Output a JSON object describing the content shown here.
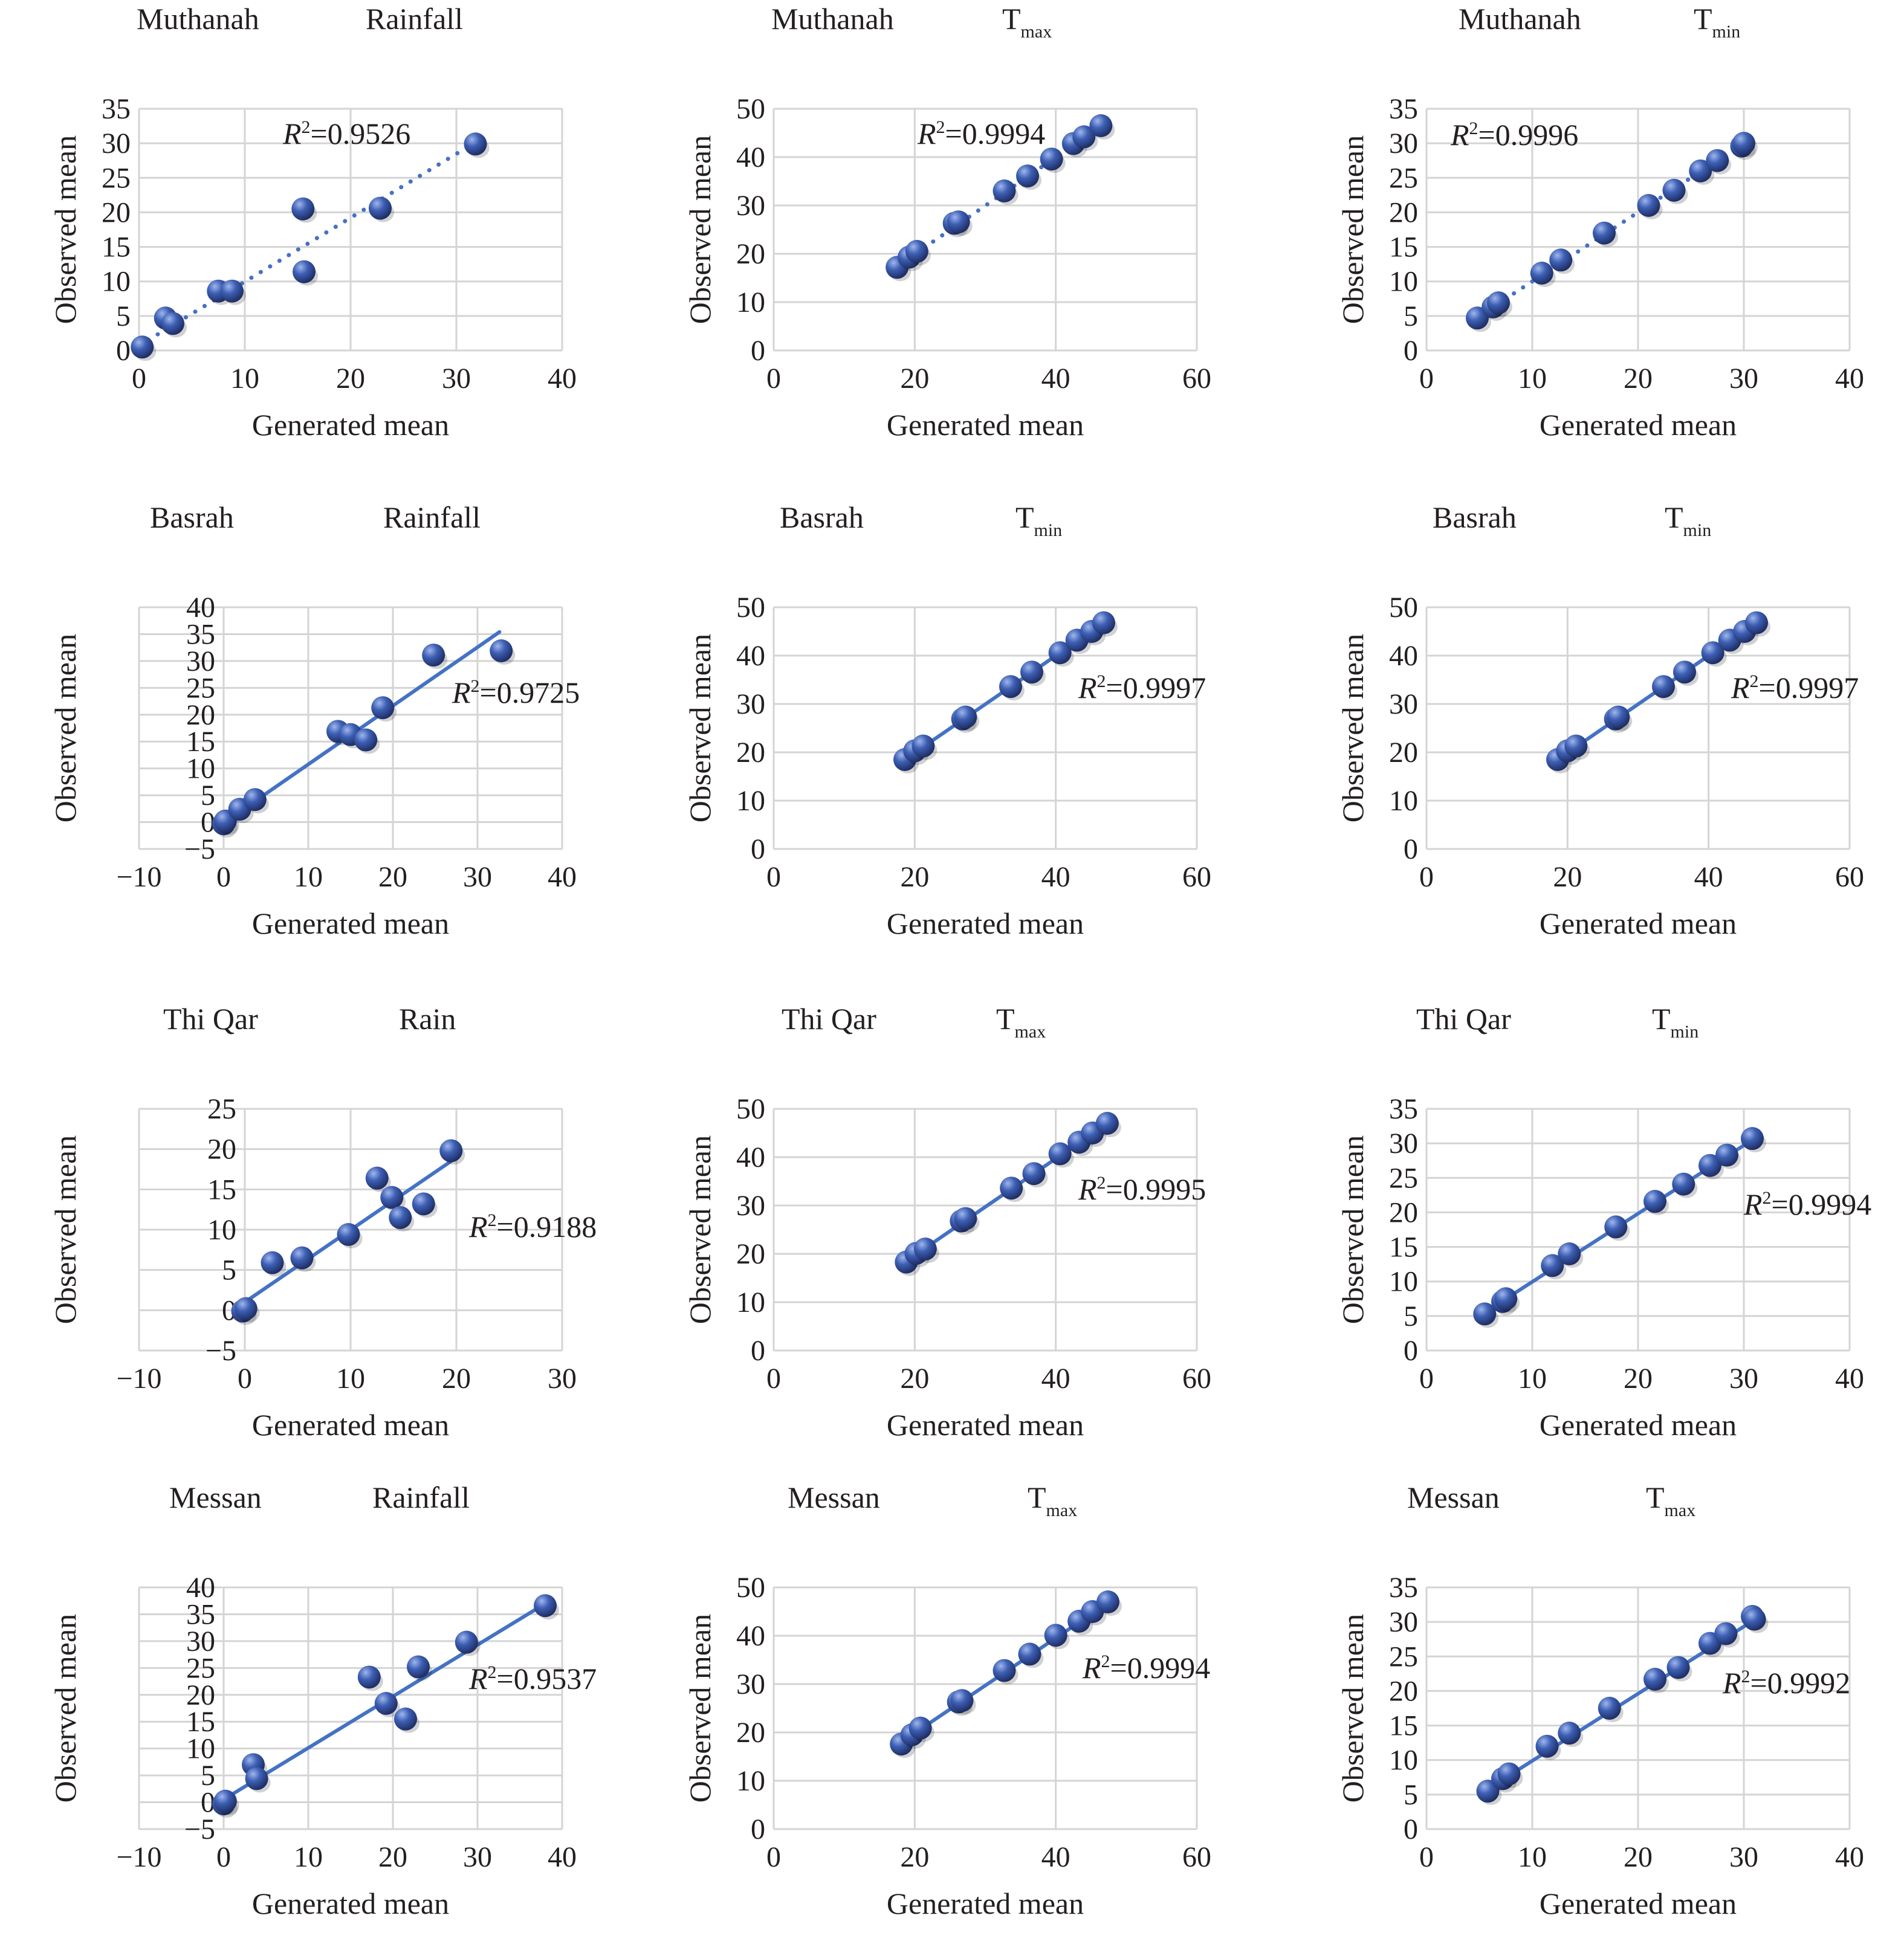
{
  "figure": {
    "grid_rows": 4,
    "grid_cols": 3
  },
  "colors": {
    "marker": "#3d5fb4",
    "marker_highlight": "#9fb6ec",
    "marker_shadow": "#1f2f66",
    "trendline": "#4472c4",
    "gridline": "#d4d4d4",
    "text": "#231f20"
  },
  "chart_data": [
    {
      "type": "scatter",
      "region": "Muthanah",
      "variable": "Rainfall",
      "variable_sub": "",
      "title": "Muthanah Rainfall",
      "xlabel": "Generated mean",
      "ylabel": "Observed mean",
      "xlim": [
        0,
        40
      ],
      "ylim": [
        0,
        35
      ],
      "xticks": [
        0,
        10,
        20,
        30,
        40
      ],
      "yticks": [
        0,
        5,
        10,
        15,
        20,
        25,
        30,
        35
      ],
      "grid": true,
      "trendline": "dotted",
      "r2_label": "=0.9526",
      "r2_position": "top-center",
      "points": [
        [
          0.3,
          0.5
        ],
        [
          2.5,
          4.7
        ],
        [
          3.2,
          3.9
        ],
        [
          7.5,
          8.6
        ],
        [
          8.8,
          8.6
        ],
        [
          15.5,
          20.5
        ],
        [
          15.6,
          11.4
        ],
        [
          22.8,
          20.6
        ],
        [
          31.8,
          29.9
        ]
      ],
      "fit": [
        [
          0,
          0.7
        ],
        [
          31,
          29.4
        ]
      ]
    },
    {
      "type": "scatter",
      "region": "Muthanah",
      "variable": "T",
      "variable_sub": "max",
      "title": "Muthanah Tmax",
      "xlabel": "Generated mean",
      "ylabel": "Observed mean",
      "xlim": [
        0,
        60
      ],
      "ylim": [
        0,
        50
      ],
      "xticks": [
        0,
        20,
        40,
        60
      ],
      "yticks": [
        0,
        10,
        20,
        30,
        40,
        50
      ],
      "grid": true,
      "trendline": "dotted",
      "r2_label": "=0.9994",
      "r2_position": "top-center",
      "points": [
        [
          17.5,
          17.2
        ],
        [
          19.2,
          19.3
        ],
        [
          20.3,
          20.5
        ],
        [
          25.6,
          26.3
        ],
        [
          26.2,
          26.6
        ],
        [
          32.7,
          33.0
        ],
        [
          36.0,
          36.1
        ],
        [
          39.4,
          39.6
        ],
        [
          42.5,
          42.8
        ],
        [
          44.0,
          44.2
        ],
        [
          46.4,
          46.5
        ]
      ],
      "fit": [
        [
          17.5,
          17.4
        ],
        [
          46.4,
          46.4
        ]
      ]
    },
    {
      "type": "scatter",
      "region": "Muthanah",
      "variable": "T",
      "variable_sub": "min",
      "title": "Muthanah Tmin",
      "xlabel": "Generated mean",
      "ylabel": "Observed mean",
      "xlim": [
        0,
        40
      ],
      "ylim": [
        0,
        35
      ],
      "xticks": [
        0,
        10,
        20,
        30,
        40
      ],
      "yticks": [
        0,
        5,
        10,
        15,
        20,
        25,
        30,
        35
      ],
      "grid": true,
      "trendline": "dotted",
      "r2_label": "=0.9996",
      "r2_position": "top-left",
      "points": [
        [
          4.8,
          4.7
        ],
        [
          6.3,
          6.3
        ],
        [
          6.8,
          6.9
        ],
        [
          10.9,
          11.2
        ],
        [
          12.7,
          13.1
        ],
        [
          16.8,
          17.0
        ],
        [
          21.0,
          21.0
        ],
        [
          23.4,
          23.2
        ],
        [
          25.9,
          26.0
        ],
        [
          27.5,
          27.5
        ],
        [
          29.8,
          29.6
        ],
        [
          30.0,
          30.0
        ]
      ],
      "fit": [
        [
          4.8,
          4.8
        ],
        [
          30.0,
          30.0
        ]
      ]
    },
    {
      "type": "scatter",
      "region": "Basrah",
      "variable": "Rainfall",
      "variable_sub": "",
      "title": "Basrah Rainfall",
      "xlabel": "Generated mean",
      "ylabel": "Observed mean",
      "xlim": [
        -10,
        40
      ],
      "ylim": [
        -5,
        40
      ],
      "xticks": [
        -10,
        0,
        10,
        20,
        30,
        40
      ],
      "yticks": [
        -5,
        0,
        5,
        10,
        15,
        20,
        25,
        30,
        35,
        40
      ],
      "grid": true,
      "trendline": "solid",
      "r2_label": "=0.9725",
      "r2_position": "right",
      "points": [
        [
          0,
          -0.3
        ],
        [
          0.2,
          0.2
        ],
        [
          1.9,
          2.4
        ],
        [
          3.7,
          4.2
        ],
        [
          13.5,
          16.9
        ],
        [
          15.0,
          16.3
        ],
        [
          16.8,
          15.3
        ],
        [
          18.8,
          21.3
        ],
        [
          24.8,
          31.1
        ],
        [
          32.8,
          31.9
        ]
      ],
      "fit": [
        [
          0.5,
          0.4
        ],
        [
          32.6,
          35.4
        ]
      ]
    },
    {
      "type": "scatter",
      "region": "Basrah",
      "variable": "T",
      "variable_sub": "min",
      "title": "Basrah Tmin",
      "xlabel": "Generated mean",
      "ylabel": "Observed mean",
      "xlim": [
        0,
        60
      ],
      "ylim": [
        0,
        50
      ],
      "xticks": [
        0,
        20,
        40,
        60
      ],
      "yticks": [
        0,
        10,
        20,
        30,
        40,
        50
      ],
      "grid": true,
      "trendline": "solid",
      "r2_label": "=0.9997",
      "r2_position": "right",
      "points": [
        [
          18.6,
          18.5
        ],
        [
          20.0,
          20.3
        ],
        [
          21.2,
          21.3
        ],
        [
          26.8,
          26.9
        ],
        [
          27.2,
          27.3
        ],
        [
          33.6,
          33.6
        ],
        [
          36.6,
          36.6
        ],
        [
          40.6,
          40.6
        ],
        [
          43.0,
          43.2
        ],
        [
          45.1,
          45.0
        ],
        [
          46.8,
          46.8
        ]
      ],
      "fit": [
        [
          18.6,
          18.5
        ],
        [
          46.8,
          46.8
        ]
      ]
    },
    {
      "type": "scatter",
      "region": "Basrah",
      "variable": "T",
      "variable_sub": "min",
      "title": "Basrah Tmin",
      "xlabel": "Generated mean",
      "ylabel": "Observed mean",
      "xlim": [
        0,
        60
      ],
      "ylim": [
        0,
        50
      ],
      "xticks": [
        0,
        20,
        40,
        60
      ],
      "yticks": [
        0,
        10,
        20,
        30,
        40,
        50
      ],
      "grid": true,
      "trendline": "solid",
      "r2_label": "=0.9997",
      "r2_position": "right",
      "points": [
        [
          18.6,
          18.5
        ],
        [
          20.0,
          20.3
        ],
        [
          21.2,
          21.3
        ],
        [
          26.8,
          26.9
        ],
        [
          27.2,
          27.3
        ],
        [
          33.6,
          33.6
        ],
        [
          36.6,
          36.6
        ],
        [
          40.6,
          40.6
        ],
        [
          43.0,
          43.2
        ],
        [
          45.1,
          45.0
        ],
        [
          46.8,
          46.8
        ]
      ],
      "fit": [
        [
          18.6,
          18.5
        ],
        [
          46.8,
          46.8
        ]
      ]
    },
    {
      "type": "scatter",
      "region": "Thi Qar",
      "variable": "Rain",
      "variable_sub": "",
      "title": "Thi Qar Rain",
      "xlabel": "Generated mean",
      "ylabel": "Observed mean",
      "xlim": [
        -10,
        30
      ],
      "ylim": [
        -5,
        25
      ],
      "xticks": [
        -10,
        0,
        10,
        20,
        30
      ],
      "yticks": [
        -5,
        0,
        5,
        10,
        15,
        20,
        25
      ],
      "grid": true,
      "trendline": "solid",
      "r2_label": "=0.9188",
      "r2_position": "right",
      "points": [
        [
          -0.2,
          -0.1
        ],
        [
          0.1,
          0.2
        ],
        [
          2.6,
          5.9
        ],
        [
          5.4,
          6.5
        ],
        [
          9.8,
          9.4
        ],
        [
          12.5,
          16.4
        ],
        [
          13.9,
          14.0
        ],
        [
          14.7,
          11.5
        ],
        [
          16.9,
          13.2
        ],
        [
          19.5,
          19.8
        ]
      ],
      "fit": [
        [
          0,
          1.0
        ],
        [
          19.5,
          18.5
        ]
      ]
    },
    {
      "type": "scatter",
      "region": "Thi Qar",
      "variable": "T",
      "variable_sub": "max",
      "title": "Thi Qar Tmax",
      "xlabel": "Generated mean",
      "ylabel": "Observed mean",
      "xlim": [
        0,
        60
      ],
      "ylim": [
        0,
        50
      ],
      "xticks": [
        0,
        20,
        40,
        60
      ],
      "yticks": [
        0,
        10,
        20,
        30,
        40,
        50
      ],
      "grid": true,
      "trendline": "solid",
      "r2_label": "=0.9995",
      "r2_position": "right",
      "points": [
        [
          18.8,
          18.3
        ],
        [
          20.2,
          20.1
        ],
        [
          21.5,
          21.0
        ],
        [
          26.6,
          26.8
        ],
        [
          27.2,
          27.3
        ],
        [
          33.7,
          33.6
        ],
        [
          36.9,
          36.6
        ],
        [
          40.6,
          40.7
        ],
        [
          43.3,
          43.1
        ],
        [
          45.2,
          45.0
        ],
        [
          47.3,
          47.0
        ]
      ],
      "fit": [
        [
          18.8,
          18.5
        ],
        [
          47.3,
          47.0
        ]
      ]
    },
    {
      "type": "scatter",
      "region": "Thi Qar",
      "variable": "T",
      "variable_sub": "min",
      "title": "Thi Qar Tmin",
      "xlabel": "Generated mean",
      "ylabel": "Observed mean",
      "xlim": [
        0,
        40
      ],
      "ylim": [
        0,
        35
      ],
      "xticks": [
        0,
        10,
        20,
        30,
        40
      ],
      "yticks": [
        0,
        5,
        10,
        15,
        20,
        25,
        30,
        35
      ],
      "grid": true,
      "trendline": "solid",
      "r2_label": "=0.9994",
      "r2_position": "right",
      "points": [
        [
          5.5,
          5.3
        ],
        [
          7.2,
          7.1
        ],
        [
          7.5,
          7.5
        ],
        [
          11.9,
          12.3
        ],
        [
          13.5,
          14.0
        ],
        [
          17.9,
          17.9
        ],
        [
          21.6,
          21.6
        ],
        [
          24.3,
          24.1
        ],
        [
          26.8,
          26.8
        ],
        [
          28.4,
          28.3
        ],
        [
          30.8,
          30.7
        ]
      ],
      "fit": [
        [
          5.5,
          5.5
        ],
        [
          30.8,
          30.5
        ]
      ]
    },
    {
      "type": "scatter",
      "region": "Messan",
      "variable": "Rainfall",
      "variable_sub": "",
      "title": "Messan Rainfall",
      "xlabel": "Generated mean",
      "ylabel": "Observed mean",
      "xlim": [
        -10,
        40
      ],
      "ylim": [
        -5,
        40
      ],
      "xticks": [
        -10,
        0,
        10,
        20,
        30,
        40
      ],
      "yticks": [
        -5,
        0,
        5,
        10,
        15,
        20,
        25,
        30,
        35,
        40
      ],
      "grid": true,
      "trendline": "solid",
      "r2_label": "=0.9537",
      "r2_position": "right",
      "points": [
        [
          0,
          -0.3
        ],
        [
          0.2,
          0.2
        ],
        [
          3.5,
          7.0
        ],
        [
          3.9,
          4.4
        ],
        [
          17.2,
          23.3
        ],
        [
          19.2,
          18.4
        ],
        [
          21.5,
          15.5
        ],
        [
          23.0,
          25.2
        ],
        [
          28.7,
          29.8
        ],
        [
          38.0,
          36.6
        ]
      ],
      "fit": [
        [
          0.5,
          1.0
        ],
        [
          37.5,
          36.5
        ]
      ]
    },
    {
      "type": "scatter",
      "region": "Messan",
      "variable": "T",
      "variable_sub": "max",
      "title": "Messan Tmax",
      "xlabel": "Generated mean",
      "ylabel": "Observed mean",
      "xlim": [
        0,
        60
      ],
      "ylim": [
        0,
        50
      ],
      "xticks": [
        0,
        20,
        40,
        60
      ],
      "yticks": [
        0,
        10,
        20,
        30,
        40,
        50
      ],
      "grid": true,
      "trendline": "solid",
      "r2_label": "=0.9994",
      "r2_position": "right",
      "points": [
        [
          18.1,
          17.6
        ],
        [
          19.6,
          19.5
        ],
        [
          20.8,
          20.9
        ],
        [
          26.2,
          26.3
        ],
        [
          26.7,
          26.6
        ],
        [
          32.7,
          32.8
        ],
        [
          36.3,
          36.2
        ],
        [
          40.0,
          40.1
        ],
        [
          43.3,
          43.0
        ],
        [
          45.2,
          45.0
        ],
        [
          47.4,
          47.0
        ]
      ],
      "fit": [
        [
          18.1,
          18.0
        ],
        [
          47.4,
          46.8
        ]
      ]
    },
    {
      "type": "scatter",
      "region": "Messan",
      "variable": "T",
      "variable_sub": "max",
      "title": "Messan Tmax",
      "xlabel": "Generated mean",
      "ylabel": "Observed mean",
      "xlim": [
        0,
        40
      ],
      "ylim": [
        0,
        35
      ],
      "xticks": [
        0,
        10,
        20,
        30,
        40
      ],
      "yticks": [
        0,
        5,
        10,
        15,
        20,
        25,
        30,
        35
      ],
      "grid": true,
      "trendline": "solid",
      "r2_label": "=0.9992",
      "r2_position": "right",
      "points": [
        [
          5.8,
          5.5
        ],
        [
          7.2,
          7.3
        ],
        [
          7.8,
          8.0
        ],
        [
          11.4,
          12.0
        ],
        [
          13.5,
          13.9
        ],
        [
          17.3,
          17.5
        ],
        [
          21.6,
          21.7
        ],
        [
          23.8,
          23.4
        ],
        [
          26.8,
          26.9
        ],
        [
          28.3,
          28.3
        ],
        [
          30.8,
          30.8
        ],
        [
          31.0,
          30.4
        ]
      ],
      "fit": [
        [
          5.8,
          5.8
        ],
        [
          31.0,
          30.3
        ]
      ]
    }
  ]
}
